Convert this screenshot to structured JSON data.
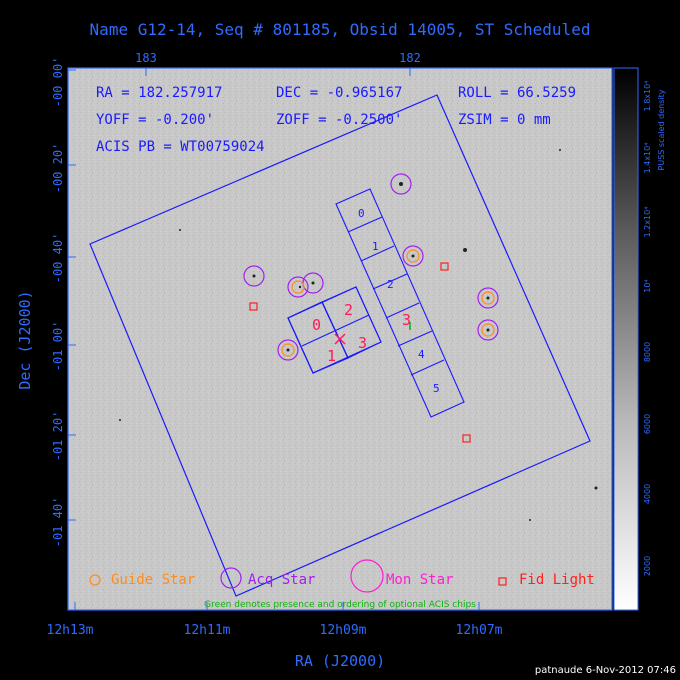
{
  "header": {
    "title": "Name G12-14, Seq # 801185, Obsid 14005, ST Scheduled"
  },
  "colors": {
    "axis": "#2f6bff",
    "guide": "#ff8c1a",
    "acq": "#a020f0",
    "mon": "#ff1dd1",
    "fid": "#ff2020",
    "chip_label_a": "#ff1a5a",
    "chip_label_b": "#1a1aff",
    "optional": "#10b010"
  },
  "info": {
    "ra": "RA = 182.257917",
    "dec": "DEC = -0.965167",
    "roll": "ROLL = 66.5259",
    "yoff": "YOFF = -0.200'",
    "zoff": "ZOFF = -0.2500'",
    "zsim": "ZSIM = 0 mm",
    "acis_pb": "ACIS PB = WT00759024"
  },
  "axes": {
    "top_ticks": [
      "183",
      "182"
    ],
    "left_ticks": [
      "-00 00'",
      "-00 20'",
      "-00 40'",
      "-01 00'",
      "-01 20'",
      "-01 40'"
    ],
    "bottom_ticks": [
      "12h13m",
      "12h11m",
      "12h09m",
      "12h07m"
    ],
    "x_label": "RA (J2000)",
    "y_label": "Dec (J2000)"
  },
  "colorbar": {
    "label": "PUSS scaled density",
    "ticks": [
      "1.8x10⁴",
      "1.4x10⁴",
      "1.2x10⁴",
      "10⁴",
      "8000",
      "6000",
      "4000",
      "2000"
    ]
  },
  "chips": {
    "i_labels": [
      "0",
      "1",
      "2",
      "3"
    ],
    "s_labels": [
      "0",
      "1",
      "2",
      "3",
      "4",
      "5"
    ]
  },
  "legend": {
    "guide": "Guide Star",
    "acq": "Acq Star",
    "mon": "Mon Star",
    "fid": "Fid Light",
    "note": "Green denotes presence and ordering of optional ACIS chips"
  },
  "footer": {
    "stamp": "patnaude  6-Nov-2012 07:46"
  }
}
